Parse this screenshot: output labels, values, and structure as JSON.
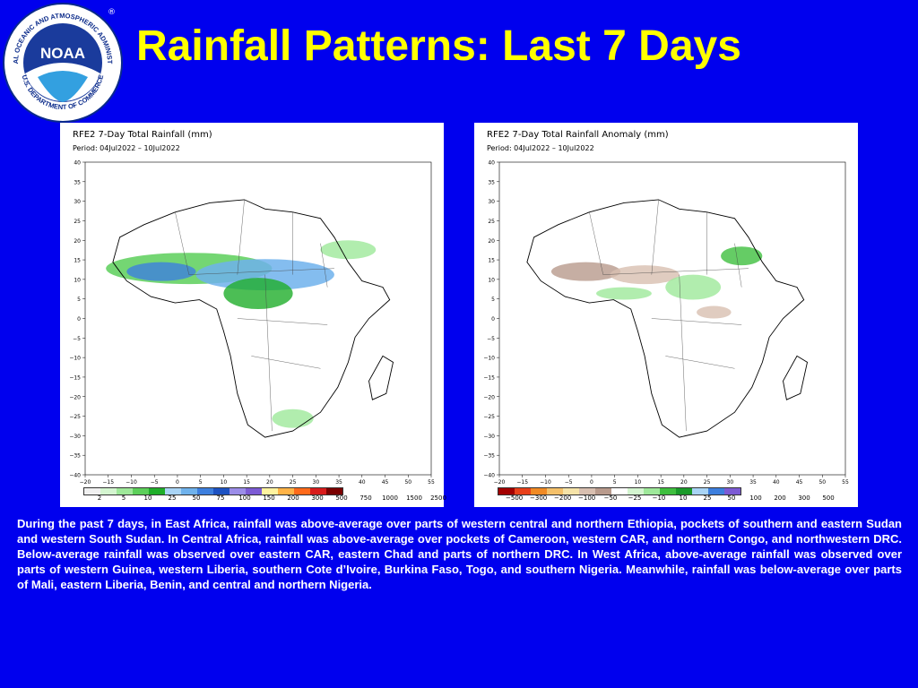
{
  "title": "Rainfall Patterns: Last 7 Days",
  "logo": {
    "text": "NOAA",
    "ring_text": "NATIONAL OCEANIC AND ATMOSPHERIC ADMINISTRATION",
    "ring_text_bottom": "U.S. DEPARTMENT OF COMMERCE",
    "mark": "®"
  },
  "maps": [
    {
      "title": "RFE2 7-Day Total Rainfall (mm)",
      "period": "Period: 04Jul2022 – 10Jul2022",
      "legend_labels": [
        "2",
        "5",
        "10",
        "25",
        "50",
        "75",
        "100",
        "150",
        "200",
        "300",
        "500",
        "750",
        "1000",
        "1500",
        "2500"
      ],
      "legend_colors": [
        "#f0f0f0",
        "#d4f5d0",
        "#9ee89a",
        "#5ccf5a",
        "#1fae2a",
        "#a9d4f5",
        "#6fb2ec",
        "#3d7fde",
        "#1d52c2",
        "#9b8de8",
        "#7c5bd4",
        "#fff3a0",
        "#ffb347",
        "#ff6a1a",
        "#d81b1b",
        "#7a0000"
      ],
      "lat_labels": [
        "40",
        "35",
        "30",
        "25",
        "20",
        "15",
        "10",
        "5",
        "0",
        "−5",
        "−10",
        "−15",
        "−20",
        "−25",
        "−30",
        "−35",
        "−40"
      ],
      "lon_labels": [
        "−20",
        "−15",
        "−10",
        "−5",
        "0",
        "5",
        "10",
        "15",
        "20",
        "25",
        "30",
        "35",
        "40",
        "45",
        "50",
        "55"
      ]
    },
    {
      "title": "RFE2 7-Day Total Rainfall Anomaly (mm)",
      "period": "Period: 04Jul2022 – 10Jul2022",
      "legend_labels": [
        "−500",
        "−300",
        "−200",
        "−100",
        "−50",
        "−25",
        "−10",
        "10",
        "25",
        "50",
        "100",
        "200",
        "300",
        "500"
      ],
      "legend_colors": [
        "#a30000",
        "#e8401a",
        "#f08a24",
        "#f4c06a",
        "#f6e3a8",
        "#d8bfb0",
        "#b89a8c",
        "#ffffff",
        "#d4f5d0",
        "#9ee89a",
        "#3fbf3f",
        "#1a9a2a",
        "#a9d4f5",
        "#3d7fde",
        "#7c5bd4"
      ],
      "lat_labels": [
        "40",
        "35",
        "30",
        "25",
        "20",
        "15",
        "10",
        "5",
        "0",
        "−5",
        "−10",
        "−15",
        "−20",
        "−25",
        "−30",
        "−35",
        "−40"
      ],
      "lon_labels": [
        "−20",
        "−15",
        "−10",
        "−5",
        "0",
        "5",
        "10",
        "15",
        "20",
        "25",
        "30",
        "35",
        "40",
        "45",
        "50",
        "55"
      ]
    }
  ],
  "summary": "During the past 7 days, in East Africa, rainfall was above-average over parts of western central and northern Ethiopia, pockets of southern and eastern Sudan and western South Sudan. In Central Africa, rainfall was above-average over pockets of Cameroon, western CAR, and northern Congo, and northwestern DRC. Below-average rainfall was observed over eastern CAR, eastern Chad and parts of northern DRC. In West Africa, above-average rainfall was observed over parts of western Guinea, western Liberia, southern Cote d’Ivoire, Burkina Faso, Togo, and southern Nigeria. Meanwhile, rainfall was below-average over parts of Mali, eastern Liberia, Benin, and central and northern Nigeria."
}
